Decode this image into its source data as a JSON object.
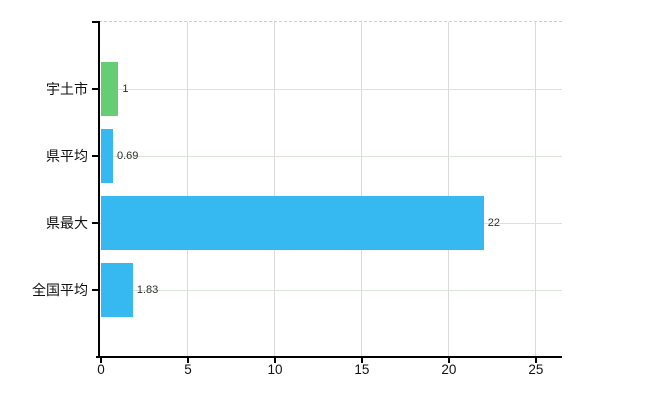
{
  "chart_data": {
    "type": "bar",
    "orientation": "horizontal",
    "title": "",
    "xlabel": "",
    "ylabel": "",
    "categories": [
      "宇土市",
      "県平均",
      "県最大",
      "全国平均"
    ],
    "values": [
      1,
      0.69,
      22,
      1.83
    ],
    "value_labels": [
      "1",
      "0.69",
      "22",
      "1.83"
    ],
    "bar_colors": [
      "#66cd75",
      "#35b9f0",
      "#35b9f0",
      "#35b9f0"
    ],
    "x_ticks": [
      "0",
      "5",
      "10",
      "15",
      "20",
      "25"
    ],
    "x_tick_values": [
      0,
      5,
      10,
      15,
      20,
      25
    ],
    "xlim": [
      0,
      26.5
    ],
    "grid": true,
    "legend": false,
    "colors": {
      "bar_green": "#66cd75",
      "bar_blue": "#35b9f0",
      "vertical_gridline": "#dadada",
      "horizontal_gridline": "#d6e6d4",
      "top_border_dashed": "#cfcfcf",
      "axis": "#000000",
      "tick_label": "#111111",
      "value_label": "#2e2e2e",
      "background": "#ffffff"
    }
  }
}
